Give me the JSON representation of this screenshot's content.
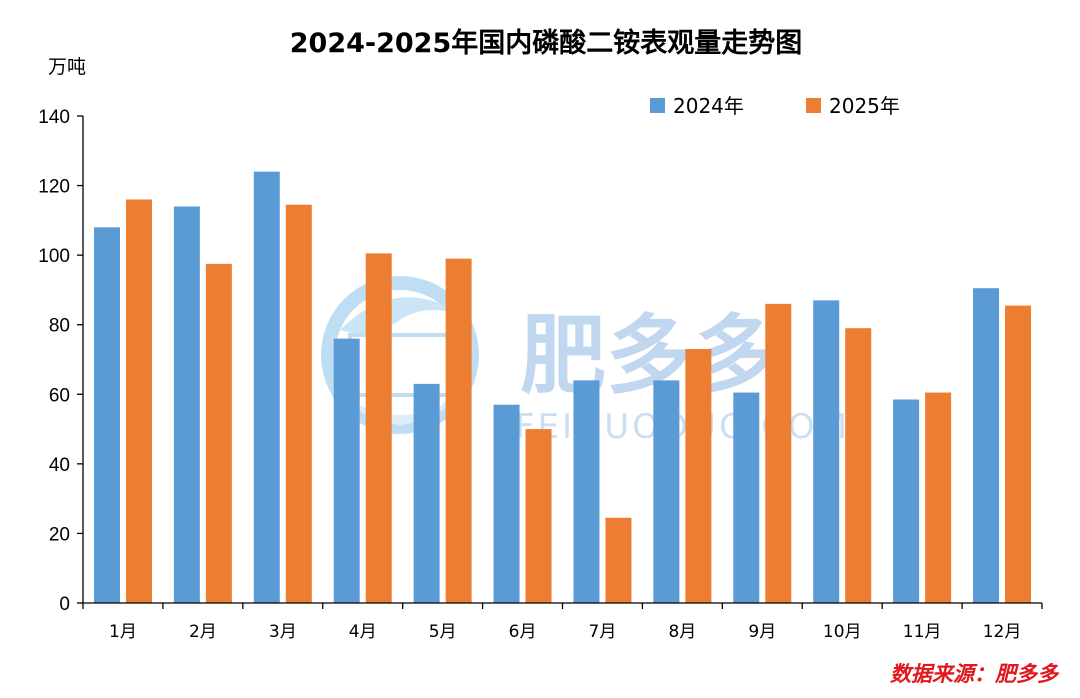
{
  "chart_data": {
    "type": "bar",
    "title": "2024-2025年国内磷酸二铵表观量走势图",
    "ylabel": "万吨",
    "xlabel": "",
    "ylim": [
      0,
      140
    ],
    "yticks": [
      0,
      20,
      40,
      60,
      80,
      100,
      120,
      140
    ],
    "categories": [
      "1月",
      "2月",
      "3月",
      "4月",
      "5月",
      "6月",
      "7月",
      "8月",
      "9月",
      "10月",
      "11月",
      "12月"
    ],
    "series": [
      {
        "name": "2024年",
        "color": "#5b9bd5",
        "values": [
          108,
          114,
          124,
          76,
          63,
          57,
          64,
          64,
          60.5,
          87,
          58.5,
          90.5
        ]
      },
      {
        "name": "2025年",
        "color": "#ed7d31",
        "values": [
          116,
          97.5,
          114.5,
          100.5,
          99,
          50,
          24.5,
          73,
          86,
          79,
          60.5,
          null
        ]
      },
      {
        "name": "2025年",
        "color": "#ed7d31",
        "values": [
          null,
          null,
          null,
          null,
          null,
          null,
          null,
          null,
          null,
          null,
          null,
          85.5
        ]
      }
    ],
    "legend_position": "top-right",
    "grid": false
  },
  "watermark": {
    "brand": "肥多多",
    "site": "FEIDUODUO.COM"
  },
  "source_note": "数据来源：肥多多"
}
